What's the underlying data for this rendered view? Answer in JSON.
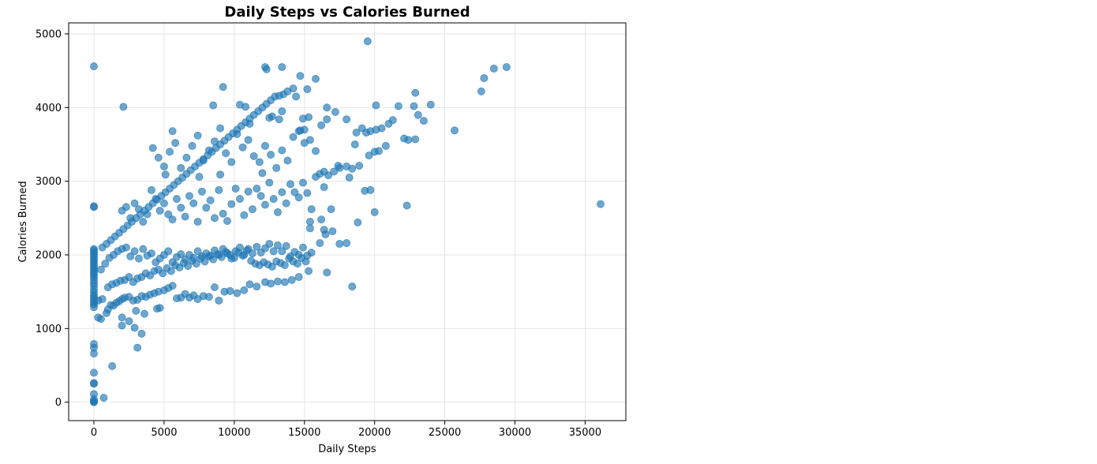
{
  "chart_data": {
    "type": "scatter",
    "title": "Daily Steps vs Calories Burned",
    "xlabel": "Daily Steps",
    "ylabel": "Calories Burned",
    "xlim": [
      -1800,
      37900
    ],
    "ylim": [
      -250,
      5150
    ],
    "xticks": [
      0,
      5000,
      10000,
      15000,
      20000,
      25000,
      30000,
      35000
    ],
    "yticks": [
      0,
      1000,
      2000,
      3000,
      4000,
      5000
    ],
    "grid": true,
    "marker_color": "#1f77b4",
    "marker_alpha": 0.65,
    "points": [
      [
        0,
        0
      ],
      [
        0,
        5
      ],
      [
        0,
        10
      ],
      [
        0,
        40
      ],
      [
        0,
        110
      ],
      [
        0,
        250
      ],
      [
        0,
        260
      ],
      [
        0,
        400
      ],
      [
        0,
        660
      ],
      [
        0,
        740
      ],
      [
        0,
        790
      ],
      [
        0,
        1290
      ],
      [
        0,
        1330
      ],
      [
        0,
        1350
      ],
      [
        0,
        1390
      ],
      [
        0,
        1420
      ],
      [
        0,
        1450
      ],
      [
        0,
        1490
      ],
      [
        0,
        1530
      ],
      [
        0,
        1580
      ],
      [
        0,
        1620
      ],
      [
        0,
        1660
      ],
      [
        0,
        1700
      ],
      [
        0,
        1730
      ],
      [
        0,
        1760
      ],
      [
        0,
        1790
      ],
      [
        0,
        1820
      ],
      [
        0,
        1850
      ],
      [
        0,
        1880
      ],
      [
        0,
        1910
      ],
      [
        0,
        1940
      ],
      [
        0,
        1970
      ],
      [
        0,
        2000
      ],
      [
        0,
        2030
      ],
      [
        0,
        2060
      ],
      [
        0,
        2080
      ],
      [
        0,
        2650
      ],
      [
        0,
        2660
      ],
      [
        0,
        4560
      ],
      [
        300,
        1150
      ],
      [
        500,
        1130
      ],
      [
        700,
        60
      ],
      [
        1300,
        490
      ],
      [
        2000,
        1040
      ],
      [
        2000,
        1150
      ],
      [
        2100,
        4010
      ],
      [
        2500,
        1100
      ],
      [
        2900,
        1010
      ],
      [
        3100,
        740
      ],
      [
        3400,
        930
      ],
      [
        3000,
        1240
      ],
      [
        3600,
        1200
      ],
      [
        4500,
        1270
      ],
      [
        4700,
        1280
      ],
      [
        300,
        1380
      ],
      [
        600,
        1400
      ],
      [
        900,
        1210
      ],
      [
        1000,
        1260
      ],
      [
        1200,
        1320
      ],
      [
        1400,
        1310
      ],
      [
        1600,
        1350
      ],
      [
        1800,
        1370
      ],
      [
        2000,
        1400
      ],
      [
        2200,
        1420
      ],
      [
        2500,
        1430
      ],
      [
        2800,
        1380
      ],
      [
        3100,
        1390
      ],
      [
        3400,
        1440
      ],
      [
        3700,
        1430
      ],
      [
        4000,
        1460
      ],
      [
        4300,
        1480
      ],
      [
        4600,
        1500
      ],
      [
        5000,
        1520
      ],
      [
        5300,
        1550
      ],
      [
        5600,
        1580
      ],
      [
        5900,
        1410
      ],
      [
        6200,
        1420
      ],
      [
        6500,
        1470
      ],
      [
        6800,
        1420
      ],
      [
        7100,
        1450
      ],
      [
        7400,
        1400
      ],
      [
        7800,
        1440
      ],
      [
        8200,
        1430
      ],
      [
        8600,
        1560
      ],
      [
        8900,
        1380
      ],
      [
        9300,
        1500
      ],
      [
        9700,
        1510
      ],
      [
        10200,
        1480
      ],
      [
        10700,
        1520
      ],
      [
        11100,
        1600
      ],
      [
        11600,
        1570
      ],
      [
        12200,
        1630
      ],
      [
        12600,
        1610
      ],
      [
        13100,
        1640
      ],
      [
        13600,
        1630
      ],
      [
        14100,
        1660
      ],
      [
        14600,
        1700
      ],
      [
        15300,
        1780
      ],
      [
        16600,
        1760
      ],
      [
        18400,
        1570
      ],
      [
        500,
        1800
      ],
      [
        800,
        1880
      ],
      [
        1100,
        1960
      ],
      [
        1400,
        2000
      ],
      [
        1700,
        2050
      ],
      [
        2000,
        2080
      ],
      [
        2300,
        2100
      ],
      [
        2600,
        1980
      ],
      [
        2900,
        2050
      ],
      [
        3200,
        1950
      ],
      [
        3500,
        2080
      ],
      [
        3800,
        1990
      ],
      [
        4100,
        2020
      ],
      [
        4400,
        1900
      ],
      [
        4700,
        1950
      ],
      [
        5000,
        2000
      ],
      [
        5300,
        2050
      ],
      [
        5600,
        1900
      ],
      [
        5900,
        1970
      ],
      [
        6200,
        2010
      ],
      [
        6500,
        1940
      ],
      [
        6800,
        2000
      ],
      [
        7100,
        1960
      ],
      [
        7400,
        2050
      ],
      [
        7700,
        1980
      ],
      [
        8000,
        2020
      ],
      [
        8300,
        1990
      ],
      [
        8600,
        2060
      ],
      [
        8900,
        2000
      ],
      [
        9200,
        2080
      ],
      [
        9500,
        2020
      ],
      [
        9800,
        1950
      ],
      [
        10100,
        2050
      ],
      [
        10400,
        2100
      ],
      [
        10700,
        2000
      ],
      [
        11000,
        2080
      ],
      [
        11300,
        2020
      ],
      [
        11600,
        2110
      ],
      [
        11900,
        2030
      ],
      [
        12200,
        2090
      ],
      [
        12500,
        2150
      ],
      [
        12800,
        2050
      ],
      [
        13100,
        2130
      ],
      [
        13400,
        2050
      ],
      [
        13700,
        2120
      ],
      [
        14000,
        1980
      ],
      [
        14300,
        2040
      ],
      [
        14600,
        2000
      ],
      [
        14900,
        2100
      ],
      [
        15200,
        1990
      ],
      [
        15500,
        2030
      ],
      [
        16100,
        2160
      ],
      [
        16500,
        2280
      ],
      [
        17000,
        2320
      ],
      [
        17500,
        2150
      ],
      [
        18000,
        2160
      ],
      [
        1000,
        1560
      ],
      [
        1300,
        1600
      ],
      [
        1600,
        1620
      ],
      [
        1900,
        1650
      ],
      [
        2200,
        1660
      ],
      [
        2500,
        1700
      ],
      [
        2800,
        1630
      ],
      [
        3100,
        1680
      ],
      [
        3400,
        1700
      ],
      [
        3700,
        1750
      ],
      [
        4000,
        1720
      ],
      [
        4300,
        1780
      ],
      [
        4600,
        1800
      ],
      [
        4900,
        1750
      ],
      [
        5200,
        1820
      ],
      [
        5500,
        1780
      ],
      [
        5800,
        1860
      ],
      [
        6100,
        1830
      ],
      [
        6400,
        1890
      ],
      [
        6700,
        1850
      ],
      [
        7000,
        1920
      ],
      [
        7300,
        1880
      ],
      [
        7600,
        1950
      ],
      [
        7900,
        1910
      ],
      [
        8200,
        1980
      ],
      [
        8500,
        1940
      ],
      [
        8800,
        2010
      ],
      [
        9100,
        1970
      ],
      [
        9400,
        2040
      ],
      [
        9700,
        2000
      ],
      [
        10000,
        1960
      ],
      [
        10300,
        2030
      ],
      [
        10600,
        1990
      ],
      [
        10900,
        2060
      ],
      [
        11200,
        1920
      ],
      [
        11500,
        1880
      ],
      [
        11800,
        1860
      ],
      [
        12100,
        1900
      ],
      [
        12400,
        1870
      ],
      [
        12700,
        1840
      ],
      [
        13000,
        1910
      ],
      [
        13300,
        1890
      ],
      [
        13600,
        1860
      ],
      [
        13900,
        1950
      ],
      [
        14200,
        1910
      ],
      [
        14500,
        1880
      ],
      [
        14800,
        1960
      ],
      [
        15100,
        1910
      ],
      [
        600,
        2100
      ],
      [
        900,
        2150
      ],
      [
        1200,
        2200
      ],
      [
        1500,
        2250
      ],
      [
        1800,
        2300
      ],
      [
        2100,
        2350
      ],
      [
        2400,
        2400
      ],
      [
        2700,
        2450
      ],
      [
        3000,
        2500
      ],
      [
        3300,
        2550
      ],
      [
        3600,
        2600
      ],
      [
        3900,
        2650
      ],
      [
        4200,
        2700
      ],
      [
        4500,
        2750
      ],
      [
        4800,
        2800
      ],
      [
        5100,
        2850
      ],
      [
        5400,
        2900
      ],
      [
        5700,
        2950
      ],
      [
        6000,
        3000
      ],
      [
        6300,
        3050
      ],
      [
        6600,
        3100
      ],
      [
        6900,
        3150
      ],
      [
        7200,
        3200
      ],
      [
        7500,
        3250
      ],
      [
        7800,
        3300
      ],
      [
        8100,
        3350
      ],
      [
        8400,
        3400
      ],
      [
        8700,
        3450
      ],
      [
        9000,
        3500
      ],
      [
        9300,
        3550
      ],
      [
        9600,
        3600
      ],
      [
        9900,
        3650
      ],
      [
        10200,
        3700
      ],
      [
        10500,
        3750
      ],
      [
        10800,
        3800
      ],
      [
        11100,
        3850
      ],
      [
        11400,
        3900
      ],
      [
        11700,
        3950
      ],
      [
        12000,
        4000
      ],
      [
        12300,
        4050
      ],
      [
        12600,
        4100
      ],
      [
        12900,
        4150
      ],
      [
        13200,
        4160
      ],
      [
        13500,
        4180
      ],
      [
        13800,
        4220
      ],
      [
        14200,
        4260
      ],
      [
        14700,
        4430
      ],
      [
        15200,
        4250
      ],
      [
        15800,
        4390
      ],
      [
        12300,
        4520
      ],
      [
        12200,
        4550
      ],
      [
        13400,
        4550
      ],
      [
        9200,
        4280
      ],
      [
        2000,
        2600
      ],
      [
        2300,
        2650
      ],
      [
        2600,
        2500
      ],
      [
        2900,
        2700
      ],
      [
        3200,
        2620
      ],
      [
        3500,
        2450
      ],
      [
        3800,
        2550
      ],
      [
        4100,
        2880
      ],
      [
        4400,
        2760
      ],
      [
        4700,
        2600
      ],
      [
        5000,
        2700
      ],
      [
        5300,
        2550
      ],
      [
        5600,
        2480
      ],
      [
        5900,
        2760
      ],
      [
        6200,
        2640
      ],
      [
        6500,
        2520
      ],
      [
        6800,
        2800
      ],
      [
        7100,
        2700
      ],
      [
        7400,
        2450
      ],
      [
        7700,
        2860
      ],
      [
        8000,
        2640
      ],
      [
        8300,
        2740
      ],
      [
        8600,
        2500
      ],
      [
        8900,
        2880
      ],
      [
        9200,
        2560
      ],
      [
        9500,
        2460
      ],
      [
        9800,
        2690
      ],
      [
        10100,
        2900
      ],
      [
        10400,
        2760
      ],
      [
        10700,
        2540
      ],
      [
        11000,
        2860
      ],
      [
        11300,
        2620
      ],
      [
        11600,
        2900
      ],
      [
        11900,
        2800
      ],
      [
        12200,
        2680
      ],
      [
        12500,
        2980
      ],
      [
        12800,
        2760
      ],
      [
        13100,
        2580
      ],
      [
        13400,
        2850
      ],
      [
        13700,
        2700
      ],
      [
        14000,
        2960
      ],
      [
        14300,
        2850
      ],
      [
        14600,
        2780
      ],
      [
        14900,
        2980
      ],
      [
        15200,
        2840
      ],
      [
        15500,
        2620
      ],
      [
        15800,
        3060
      ],
      [
        16100,
        3100
      ],
      [
        16400,
        2920
      ],
      [
        16700,
        3080
      ],
      [
        17100,
        3130
      ],
      [
        17500,
        3180
      ],
      [
        18000,
        3200
      ],
      [
        18200,
        3050
      ],
      [
        18400,
        3170
      ],
      [
        18900,
        3210
      ],
      [
        19600,
        3350
      ],
      [
        20000,
        3400
      ],
      [
        20300,
        3410
      ],
      [
        20800,
        3480
      ],
      [
        19700,
        2880
      ],
      [
        20000,
        2580
      ],
      [
        22300,
        2670
      ],
      [
        16900,
        2620
      ],
      [
        16200,
        2480
      ],
      [
        16400,
        2340
      ],
      [
        15400,
        2360
      ],
      [
        15400,
        2450
      ],
      [
        18800,
        2440
      ],
      [
        19300,
        2870
      ],
      [
        4200,
        3450
      ],
      [
        4600,
        3320
      ],
      [
        5000,
        3200
      ],
      [
        5400,
        3400
      ],
      [
        5800,
        3520
      ],
      [
        6200,
        3180
      ],
      [
        6600,
        3320
      ],
      [
        7000,
        3480
      ],
      [
        7400,
        3620
      ],
      [
        7800,
        3280
      ],
      [
        8200,
        3420
      ],
      [
        8600,
        3540
      ],
      [
        9000,
        3720
      ],
      [
        9400,
        3380
      ],
      [
        9800,
        3260
      ],
      [
        10200,
        3640
      ],
      [
        10600,
        3460
      ],
      [
        11000,
        3560
      ],
      [
        11400,
        3340
      ],
      [
        11800,
        3260
      ],
      [
        12200,
        3480
      ],
      [
        12600,
        3360
      ],
      [
        13000,
        3180
      ],
      [
        13400,
        3420
      ],
      [
        13800,
        3280
      ],
      [
        14200,
        3600
      ],
      [
        14600,
        3680
      ],
      [
        15000,
        3520
      ],
      [
        15400,
        3560
      ],
      [
        15800,
        3410
      ],
      [
        16200,
        3760
      ],
      [
        16600,
        3840
      ],
      [
        17200,
        3940
      ],
      [
        18000,
        3840
      ],
      [
        18700,
        3660
      ],
      [
        19100,
        3720
      ],
      [
        19700,
        3680
      ],
      [
        20100,
        3700
      ],
      [
        20500,
        3720
      ],
      [
        21000,
        3780
      ],
      [
        21300,
        3830
      ],
      [
        21700,
        4020
      ],
      [
        22100,
        3580
      ],
      [
        22400,
        3560
      ],
      [
        22900,
        3570
      ],
      [
        23100,
        3900
      ],
      [
        23500,
        3820
      ],
      [
        24000,
        4040
      ],
      [
        22800,
        4020
      ],
      [
        22900,
        4200
      ],
      [
        25700,
        3690
      ],
      [
        27600,
        4220
      ],
      [
        27800,
        4400
      ],
      [
        28500,
        4530
      ],
      [
        29400,
        4550
      ],
      [
        20100,
        4030
      ],
      [
        5600,
        3680
      ],
      [
        8500,
        4030
      ],
      [
        10400,
        4040
      ],
      [
        10800,
        4010
      ],
      [
        19500,
        4900
      ],
      [
        36100,
        2690
      ],
      [
        5100,
        3090
      ],
      [
        7500,
        3060
      ],
      [
        9000,
        3090
      ],
      [
        12000,
        3110
      ],
      [
        16400,
        3130
      ],
      [
        17400,
        3210
      ],
      [
        18600,
        3500
      ],
      [
        19400,
        3660
      ],
      [
        14900,
        3850
      ],
      [
        15300,
        3870
      ],
      [
        16600,
        4000
      ],
      [
        12500,
        3860
      ],
      [
        13200,
        3840
      ],
      [
        11100,
        3780
      ],
      [
        12700,
        3880
      ],
      [
        13400,
        3950
      ],
      [
        14400,
        4150
      ],
      [
        14700,
        3690
      ],
      [
        15000,
        3700
      ]
    ]
  }
}
